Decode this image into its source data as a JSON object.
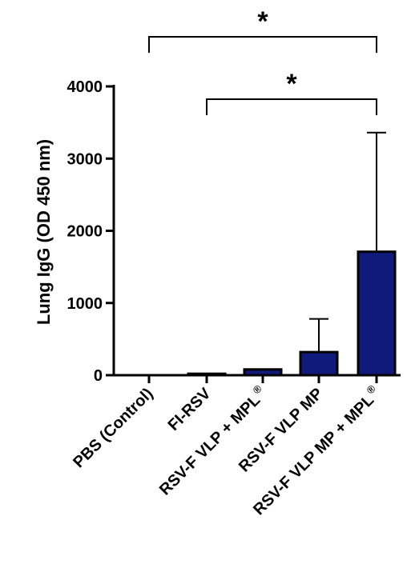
{
  "chart_data": {
    "type": "bar",
    "ylabel": "Lung IgG (OD 450 nm)",
    "ylim": [
      0,
      4000
    ],
    "yticks": [
      "0",
      "1000",
      "2000",
      "3000",
      "4000"
    ],
    "categories": [
      {
        "label": "PBS (Control)",
        "sup": ""
      },
      {
        "label": "FI-RSV",
        "sup": ""
      },
      {
        "label": "RSV-F VLP + MPL",
        "sup": "®"
      },
      {
        "label": "RSV-F VLP MP",
        "sup": ""
      },
      {
        "label": "RSV-F VLP MP + MPL",
        "sup": "®"
      }
    ],
    "values": [
      0,
      20,
      80,
      320,
      1710
    ],
    "errors": [
      0,
      0,
      0,
      460,
      1650
    ],
    "bar_color": "#0f1a7a",
    "significance": [
      {
        "from": 0,
        "to": 4,
        "label": "*"
      },
      {
        "from": 1,
        "to": 4,
        "label": "*"
      }
    ]
  }
}
